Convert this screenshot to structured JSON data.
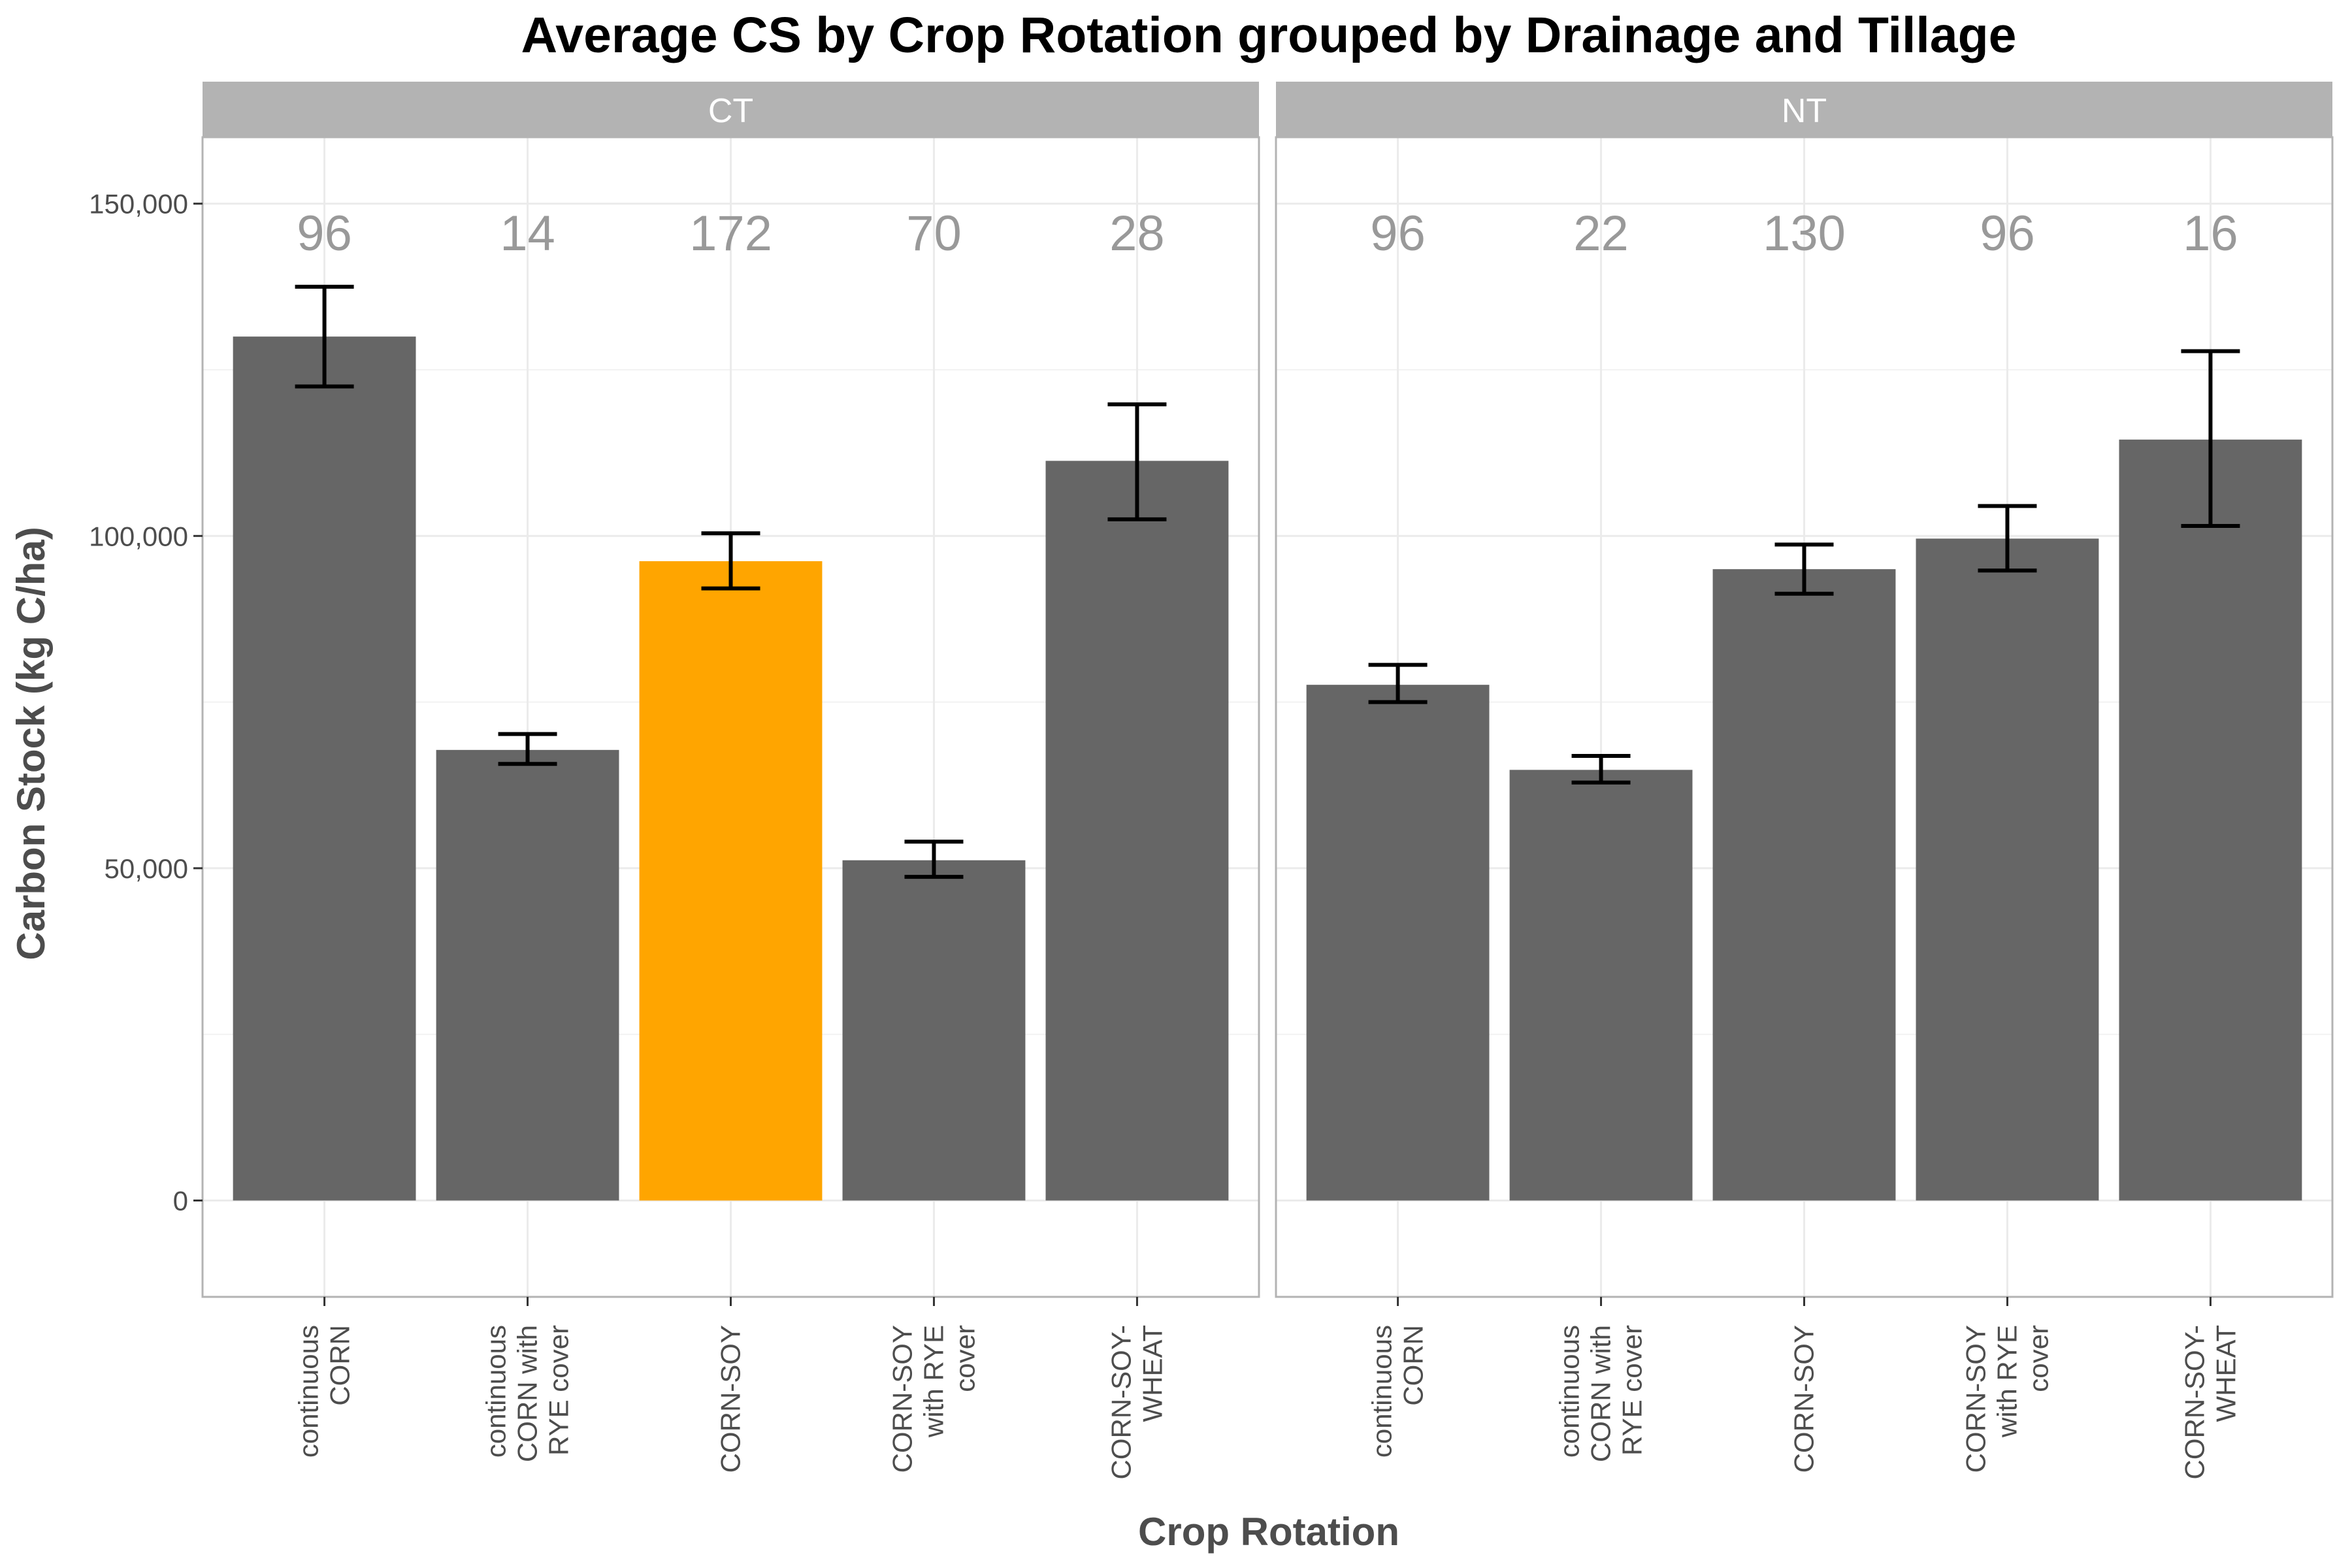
{
  "chart_data": {
    "type": "bar",
    "title": "Average CS by Crop Rotation grouped by Drainage and Tillage",
    "xlabel": "Crop Rotation",
    "ylabel": "Carbon Stock (kg C/ha)",
    "ylim": [
      -14500,
      160000
    ],
    "yticks": [
      0,
      50000,
      100000,
      150000
    ],
    "ytick_labels": [
      "0",
      "50,000",
      "100,000",
      "150,000"
    ],
    "grid": true,
    "colors": {
      "bar": "#666666",
      "highlight": "#ffa500",
      "strip": "#b3b3b3",
      "count_label": "#999999",
      "errorbar": "#000000"
    },
    "categories": [
      [
        "continuous",
        "CORN"
      ],
      [
        "continuous",
        "CORN with",
        "RYE cover"
      ],
      [
        "CORN-SOY"
      ],
      [
        "CORN-SOY",
        "with RYE",
        "cover"
      ],
      [
        "CORN-SOY-",
        "WHEAT"
      ]
    ],
    "panels": [
      {
        "name": "CT",
        "highlight_index": 2,
        "values": [
          130000,
          67800,
          96200,
          51200,
          111300
        ],
        "error_low": [
          122500,
          65700,
          92100,
          48700,
          102500
        ],
        "error_high": [
          137500,
          70200,
          100400,
          54000,
          119800
        ],
        "counts": [
          "96",
          "14",
          "172",
          "70",
          "28"
        ]
      },
      {
        "name": "NT",
        "highlight_index": null,
        "category_labels": [
          [
            "continuous",
            "CORN"
          ],
          [
            "continuous",
            "CORN with",
            "RYE cover"
          ],
          [
            "CORN-SOY"
          ],
          [
            "CORN-SOY",
            "with RYE",
            "cover"
          ],
          [
            "CORN-SOY-",
            "WHEAT"
          ]
        ],
        "values": [
          77600,
          64800,
          95000,
          99600,
          114500
        ],
        "error_low": [
          75000,
          62900,
          91300,
          94800,
          101500
        ],
        "error_high": [
          80600,
          66900,
          98700,
          104500,
          127800
        ],
        "counts": [
          "96",
          "22",
          "130",
          "96",
          "16"
        ]
      }
    ]
  }
}
